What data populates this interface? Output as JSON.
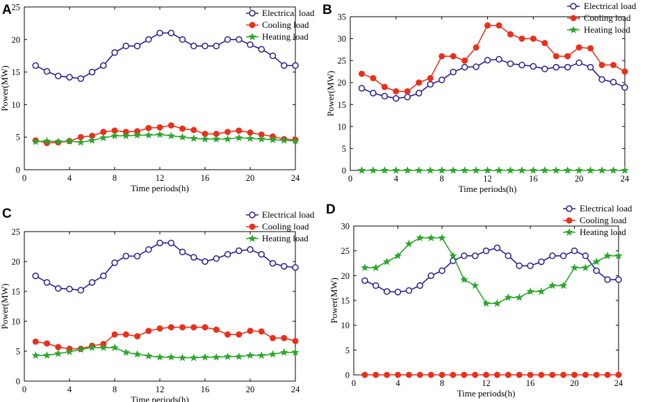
{
  "colors": {
    "electrical": "#2a1d8f",
    "cooling": "#e8301c",
    "heating": "#2ca52c"
  },
  "chart_data": [
    {
      "panel": "A",
      "type": "line",
      "xlabel": "Time periods(h)",
      "ylabel": "Power(MW)",
      "xlim": [
        0,
        24
      ],
      "ylim": [
        0,
        25
      ],
      "xticks": [
        0,
        4,
        8,
        12,
        16,
        20,
        24
      ],
      "yticks": [
        0,
        5,
        10,
        15,
        20,
        25
      ],
      "legend_position": "top-right",
      "x": [
        1,
        2,
        3,
        4,
        5,
        6,
        7,
        8,
        9,
        10,
        11,
        12,
        13,
        14,
        15,
        16,
        17,
        18,
        19,
        20,
        21,
        22,
        23,
        24
      ],
      "series": [
        {
          "name": "Electrical load",
          "key": "electrical",
          "marker": "circle",
          "values": [
            16,
            15.1,
            14.4,
            14.2,
            14,
            15,
            16,
            18,
            19,
            19,
            20,
            21,
            21,
            20,
            19,
            19,
            19,
            20,
            20,
            19.2,
            18.5,
            17.5,
            16,
            16
          ]
        },
        {
          "name": "Cooling load",
          "key": "cooling",
          "marker": "filled-circle",
          "values": [
            4.5,
            4.1,
            4.2,
            4.4,
            5,
            5.2,
            5.8,
            6,
            5.8,
            5.9,
            6.4,
            6.5,
            6.8,
            6.3,
            6.1,
            5.5,
            5.5,
            5.8,
            6,
            5.7,
            5.4,
            5.1,
            4.7,
            4.6
          ]
        },
        {
          "name": "Heating load",
          "key": "heating",
          "marker": "star",
          "values": [
            4.3,
            4.4,
            4.3,
            4.4,
            4.2,
            4.5,
            4.9,
            5.2,
            5.2,
            5.3,
            5.3,
            5.4,
            5.2,
            5,
            4.8,
            4.7,
            4.7,
            4.7,
            4.9,
            4.8,
            4.7,
            4.6,
            4.5,
            4.4
          ]
        }
      ]
    },
    {
      "panel": "B",
      "type": "line",
      "xlabel": "Time periods(h)",
      "ylabel": "Power(MW)",
      "xlim": [
        0,
        24
      ],
      "ylim": [
        0,
        35
      ],
      "xticks": [
        0,
        4,
        8,
        12,
        16,
        20,
        24
      ],
      "yticks": [
        0,
        5,
        10,
        15,
        20,
        25,
        30,
        35
      ],
      "legend_position": "top-right",
      "x": [
        1,
        2,
        3,
        4,
        5,
        6,
        7,
        8,
        9,
        10,
        11,
        12,
        13,
        14,
        15,
        16,
        17,
        18,
        19,
        20,
        21,
        22,
        23,
        24
      ],
      "series": [
        {
          "name": "Electrical load",
          "key": "electrical",
          "marker": "circle",
          "values": [
            18.7,
            17.6,
            16.9,
            16.4,
            16.7,
            17.6,
            19.6,
            20.6,
            22.4,
            23.5,
            23.6,
            25.1,
            25.3,
            24.3,
            24,
            23.7,
            23.1,
            23.5,
            23.5,
            24.5,
            23.5,
            20.7,
            20.1,
            18.9
          ]
        },
        {
          "name": "Cooling load",
          "key": "cooling",
          "marker": "filled-circle",
          "values": [
            22,
            21,
            19,
            18,
            18,
            20,
            21,
            26,
            26,
            25,
            28,
            33,
            33,
            31,
            30,
            30,
            29,
            26,
            26,
            28,
            27.8,
            24,
            24,
            22.5
          ]
        },
        {
          "name": "Heating load",
          "key": "heating",
          "marker": "star",
          "values": [
            0,
            0,
            0,
            0,
            0,
            0,
            0,
            0,
            0,
            0,
            0,
            0,
            0,
            0,
            0,
            0,
            0,
            0,
            0,
            0,
            0,
            0,
            0,
            0
          ]
        }
      ]
    },
    {
      "panel": "C",
      "type": "line",
      "xlabel": "Time periods(h)",
      "ylabel": "Power(MW)",
      "xlim": [
        0,
        24
      ],
      "ylim": [
        0,
        25
      ],
      "xticks": [
        0,
        4,
        8,
        12,
        16,
        20,
        24
      ],
      "yticks": [
        0,
        5,
        10,
        15,
        20,
        25
      ],
      "legend_position": "top-right",
      "x": [
        1,
        2,
        3,
        4,
        5,
        6,
        7,
        8,
        9,
        10,
        11,
        12,
        13,
        14,
        15,
        16,
        17,
        18,
        19,
        20,
        21,
        22,
        23,
        24
      ],
      "series": [
        {
          "name": "Electrical load",
          "key": "electrical",
          "marker": "circle",
          "values": [
            17.6,
            16.5,
            15.5,
            15.4,
            15.2,
            16.5,
            17.6,
            19.8,
            20.9,
            20.9,
            22,
            23.1,
            23.1,
            21.6,
            20.7,
            20,
            20.5,
            21.2,
            21.8,
            22,
            21.2,
            19.7,
            19.2,
            19
          ]
        },
        {
          "name": "Cooling load",
          "key": "cooling",
          "marker": "filled-circle",
          "values": [
            6.6,
            6.3,
            5.7,
            5.4,
            5.4,
            5.9,
            6.2,
            7.8,
            7.8,
            7.5,
            8.4,
            8.8,
            9,
            9,
            9,
            9,
            8.6,
            7.8,
            7.8,
            8.4,
            8.3,
            7.2,
            7.2,
            6.7
          ]
        },
        {
          "name": "Heating load",
          "key": "heating",
          "marker": "star",
          "values": [
            4.3,
            4.3,
            4.6,
            4.9,
            5.3,
            5.6,
            5.6,
            5.6,
            4.8,
            4.5,
            4.2,
            4,
            4,
            3.9,
            3.9,
            4,
            4,
            4.1,
            4.1,
            4.3,
            4.3,
            4.5,
            4.8,
            4.8
          ]
        }
      ]
    },
    {
      "panel": "D",
      "type": "line",
      "xlabel": "Time periods(h)",
      "ylabel": "Power(MW)",
      "xlim": [
        0,
        24
      ],
      "ylim": [
        0,
        30
      ],
      "xticks": [
        0,
        4,
        8,
        12,
        16,
        20,
        24
      ],
      "yticks": [
        0,
        5,
        10,
        15,
        20,
        25,
        30
      ],
      "legend_position": "top-right",
      "x": [
        1,
        2,
        3,
        4,
        5,
        6,
        7,
        8,
        9,
        10,
        11,
        12,
        13,
        14,
        15,
        16,
        17,
        18,
        19,
        20,
        21,
        22,
        23,
        24
      ],
      "series": [
        {
          "name": "Electrical load",
          "key": "electrical",
          "marker": "circle",
          "values": [
            19,
            18,
            16.8,
            16.7,
            17,
            18,
            20,
            21,
            23,
            24,
            24,
            25,
            25.6,
            24,
            22,
            22,
            22.8,
            24,
            24,
            25,
            24,
            21,
            19.2,
            19.2
          ]
        },
        {
          "name": "Cooling load",
          "key": "cooling",
          "marker": "filled-circle",
          "values": [
            0,
            0,
            0,
            0,
            0,
            0,
            0,
            0,
            0,
            0,
            0,
            0,
            0,
            0,
            0,
            0,
            0,
            0,
            0,
            0,
            0,
            0,
            0,
            0
          ]
        },
        {
          "name": "Heating load",
          "key": "heating",
          "marker": "star",
          "values": [
            21.6,
            21.6,
            22.8,
            24,
            26.4,
            27.6,
            27.6,
            27.6,
            24,
            19.2,
            18,
            14.4,
            14.4,
            15.6,
            15.6,
            16.8,
            16.8,
            18,
            18,
            21.6,
            21.6,
            22.8,
            24,
            24
          ]
        }
      ]
    }
  ]
}
